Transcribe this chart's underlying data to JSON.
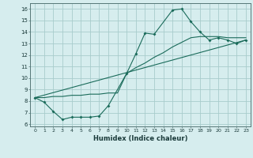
{
  "xlabel": "Humidex (Indice chaleur)",
  "bg_color": "#d6edee",
  "grid_color": "#a8cccc",
  "line_color": "#1a6b5a",
  "xlim": [
    -0.5,
    23.5
  ],
  "ylim": [
    5.8,
    16.5
  ],
  "xticks": [
    0,
    1,
    2,
    3,
    4,
    5,
    6,
    7,
    8,
    9,
    10,
    11,
    12,
    13,
    14,
    15,
    16,
    17,
    18,
    19,
    20,
    21,
    22,
    23
  ],
  "yticks": [
    6,
    7,
    8,
    9,
    10,
    11,
    12,
    13,
    14,
    15,
    16
  ],
  "line1_x": [
    0,
    1,
    2,
    3,
    4,
    5,
    6,
    7,
    8,
    10,
    11,
    12,
    13,
    15,
    16,
    17,
    18,
    19,
    20,
    21,
    22,
    23
  ],
  "line1_y": [
    8.3,
    7.9,
    7.1,
    6.4,
    6.6,
    6.6,
    6.6,
    6.7,
    7.6,
    10.4,
    12.1,
    13.9,
    13.8,
    15.9,
    16.0,
    14.9,
    14.0,
    13.3,
    13.5,
    13.3,
    13.0,
    13.3
  ],
  "line2_x": [
    0,
    1,
    2,
    3,
    4,
    5,
    6,
    7,
    8,
    9,
    10,
    11,
    12,
    13,
    14,
    15,
    16,
    17,
    18,
    19,
    20,
    21,
    22,
    23
  ],
  "line2_y": [
    8.3,
    8.3,
    8.4,
    8.4,
    8.5,
    8.5,
    8.6,
    8.6,
    8.7,
    8.7,
    10.4,
    10.9,
    11.3,
    11.8,
    12.2,
    12.7,
    13.1,
    13.5,
    13.6,
    13.6,
    13.6,
    13.5,
    13.5,
    13.5
  ],
  "line3_x": [
    0,
    23
  ],
  "line3_y": [
    8.3,
    13.3
  ]
}
